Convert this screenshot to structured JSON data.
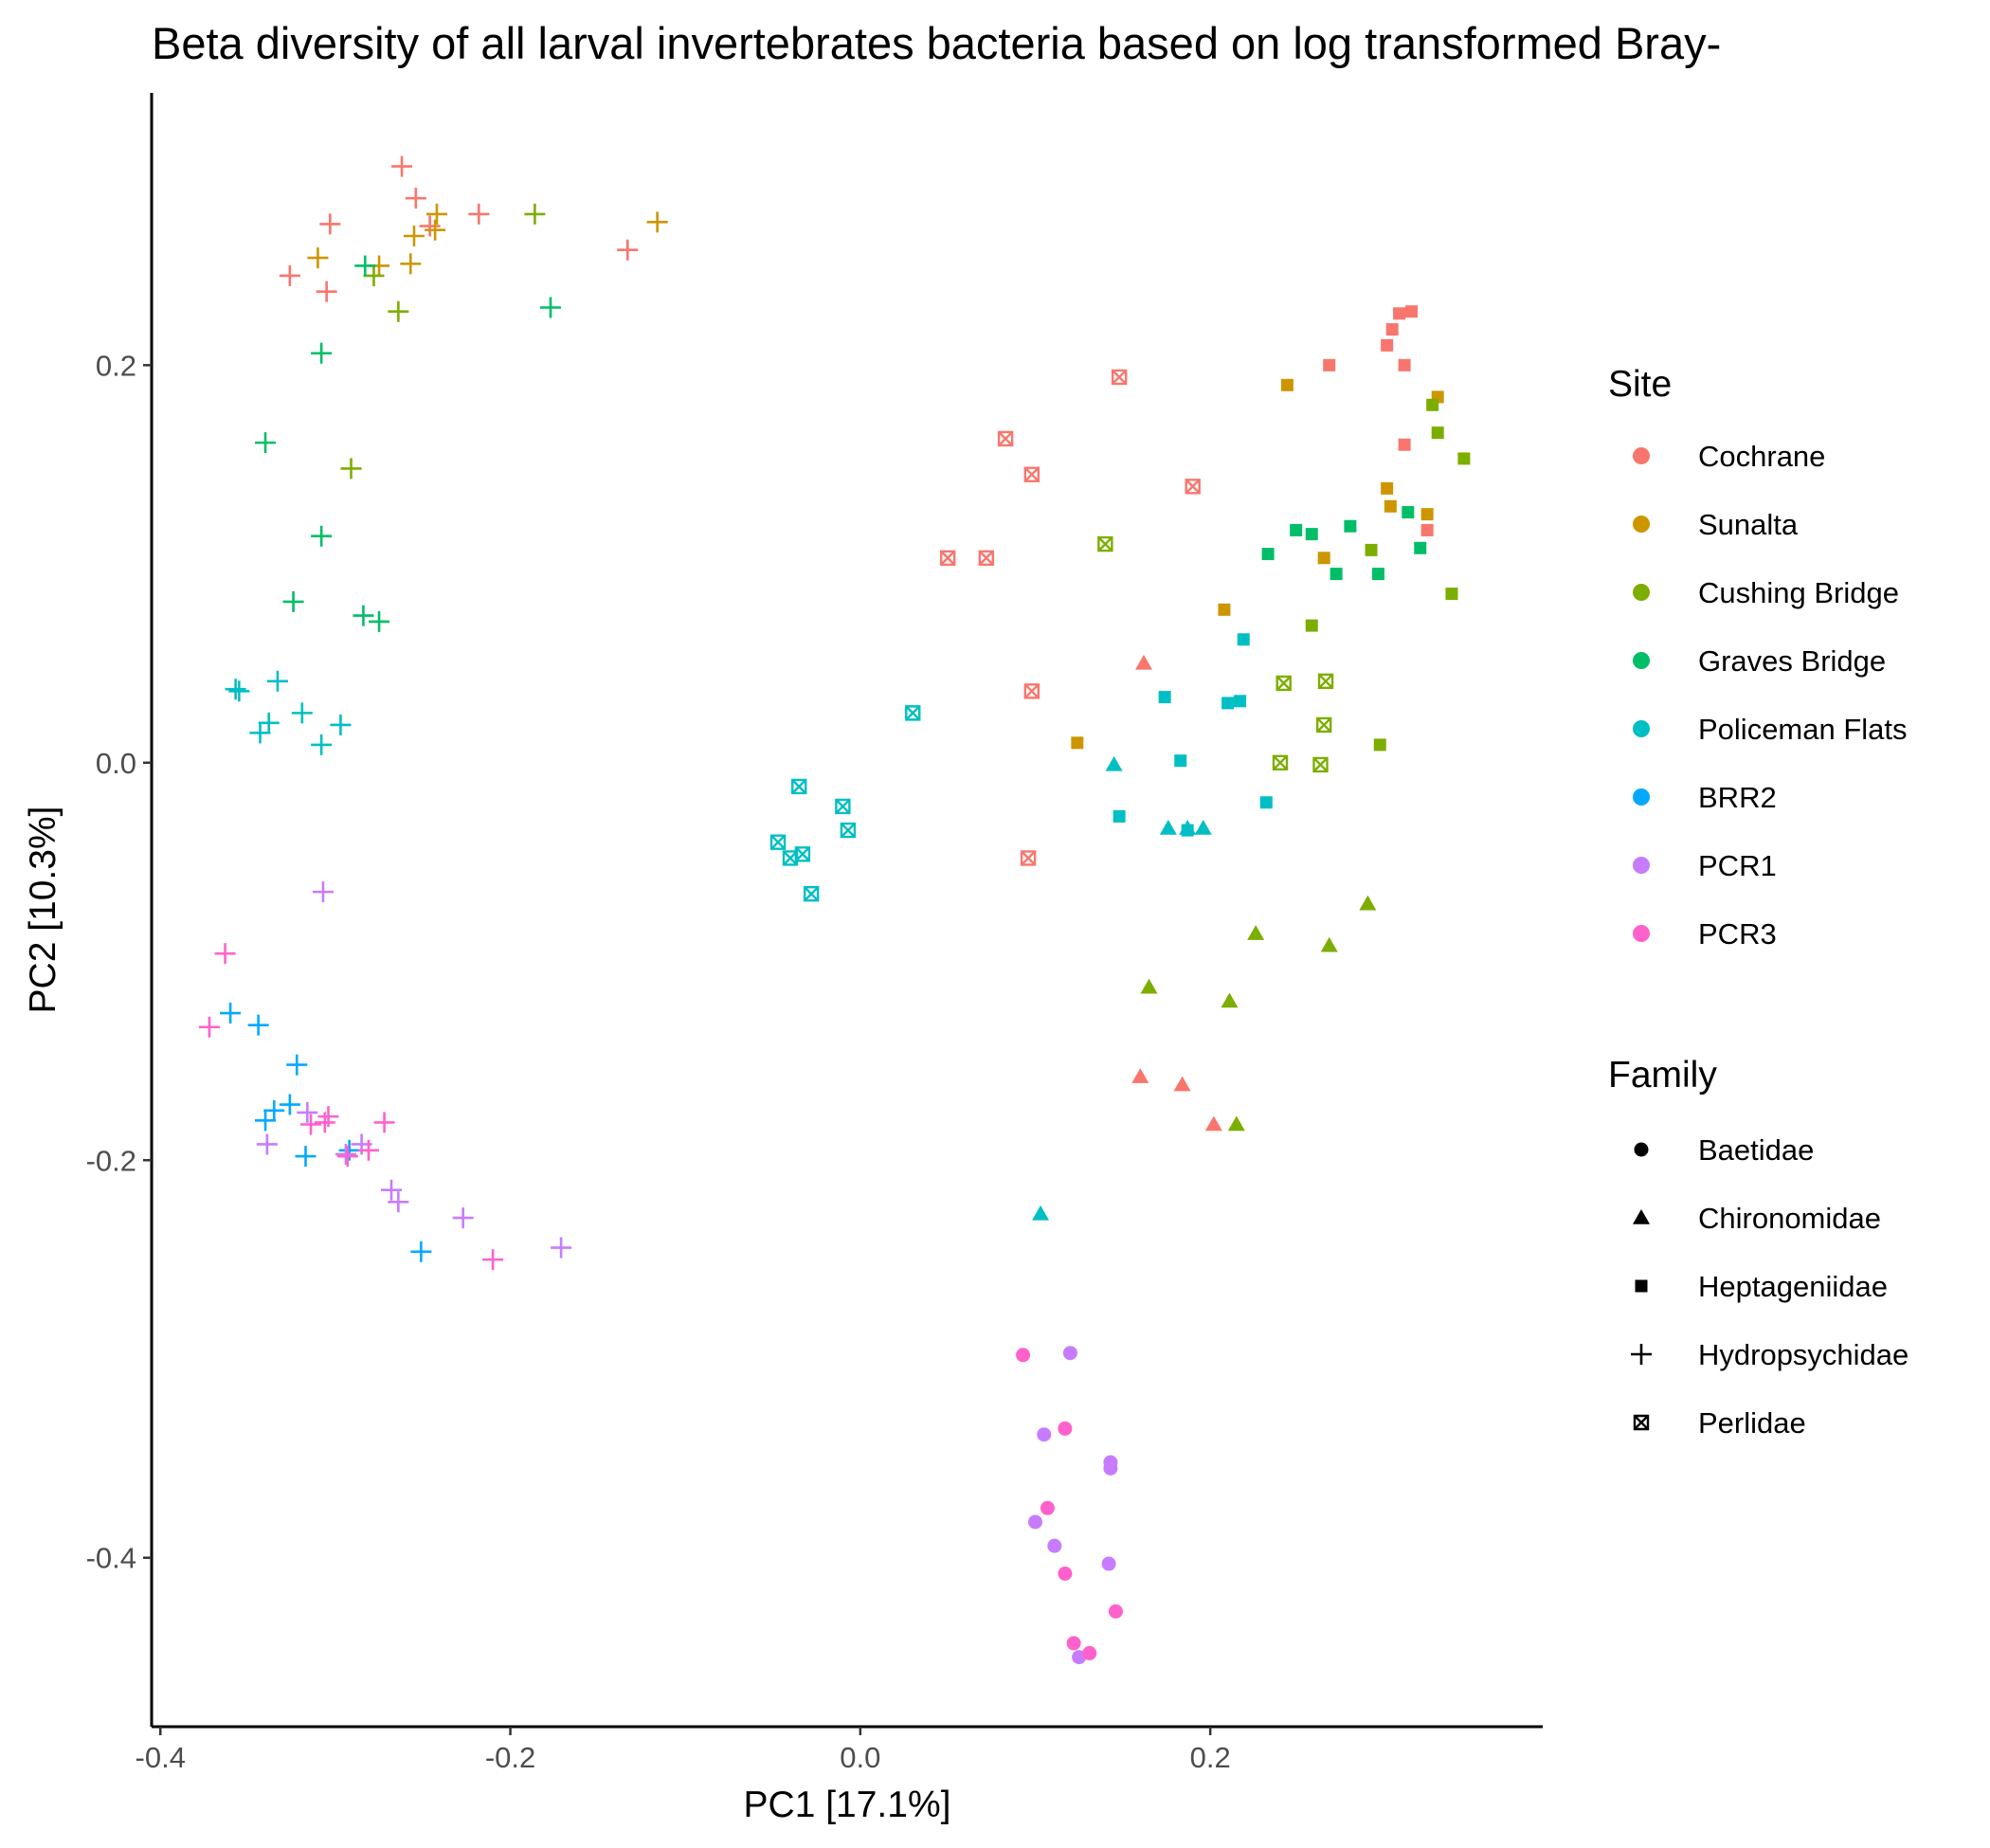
{
  "chart_data": {
    "type": "scatter",
    "title": "Beta diversity of all larval invertebrates bacteria based on log transformed Bray-",
    "xlabel": "PC1 [17.1%]",
    "ylabel": "PC2 [10.3%]",
    "xlim": [
      -0.405,
      0.39
    ],
    "ylim": [
      -0.485,
      0.337
    ],
    "xticks": [
      -0.4,
      -0.2,
      0.0,
      0.2
    ],
    "xtick_labels": [
      "-0.4",
      "-0.2",
      "0.0",
      "0.2"
    ],
    "yticks": [
      -0.4,
      -0.2,
      0.0,
      0.2
    ],
    "ytick_labels": [
      "-0.4",
      "-0.2",
      "0.0",
      "0.2"
    ],
    "grid": false,
    "legend_position": "right",
    "color_legend": {
      "title": "Site",
      "items": [
        {
          "name": "Cochrane",
          "color": "#F8766D"
        },
        {
          "name": "Sunalta",
          "color": "#CD9600"
        },
        {
          "name": "Cushing Bridge",
          "color": "#7CAE00"
        },
        {
          "name": "Graves Bridge",
          "color": "#00BE67"
        },
        {
          "name": "Policeman Flats",
          "color": "#00BFC4"
        },
        {
          "name": "BRR2",
          "color": "#00A9FF"
        },
        {
          "name": "PCR1",
          "color": "#C77CFF"
        },
        {
          "name": "PCR3",
          "color": "#FF61CC"
        }
      ]
    },
    "shape_legend": {
      "title": "Family",
      "items": [
        {
          "name": "Baetidae",
          "shape": "circle"
        },
        {
          "name": "Chironomidae",
          "shape": "triangle"
        },
        {
          "name": "Heptageniidae",
          "shape": "square"
        },
        {
          "name": "Hydropsychidae",
          "shape": "plus"
        },
        {
          "name": "Perlidae",
          "shape": "square-x"
        }
      ]
    },
    "series": [
      {
        "site": "Cochrane",
        "family": "Hydropsychidae",
        "points": [
          [
            -0.262,
            0.3
          ],
          [
            -0.254,
            0.284
          ],
          [
            -0.303,
            0.271
          ],
          [
            -0.218,
            0.276
          ],
          [
            -0.133,
            0.258
          ],
          [
            -0.326,
            0.245
          ],
          [
            -0.305,
            0.237
          ],
          [
            -0.246,
            0.27
          ]
        ]
      },
      {
        "site": "Sunalta",
        "family": "Hydropsychidae",
        "points": [
          [
            -0.31,
            0.254
          ],
          [
            -0.255,
            0.265
          ],
          [
            -0.243,
            0.268
          ],
          [
            -0.242,
            0.276
          ],
          [
            -0.257,
            0.251
          ],
          [
            -0.275,
            0.25
          ],
          [
            -0.116,
            0.272
          ]
        ]
      },
      {
        "site": "Cushing Bridge",
        "family": "Hydropsychidae",
        "points": [
          [
            -0.186,
            0.276
          ],
          [
            -0.278,
            0.245
          ],
          [
            -0.264,
            0.227
          ],
          [
            -0.291,
            0.148
          ]
        ]
      },
      {
        "site": "Graves Bridge",
        "family": "Hydropsychidae",
        "points": [
          [
            -0.283,
            0.25
          ],
          [
            -0.177,
            0.229
          ],
          [
            -0.308,
            0.206
          ],
          [
            -0.34,
            0.161
          ],
          [
            -0.308,
            0.114
          ],
          [
            -0.324,
            0.081
          ],
          [
            -0.284,
            0.074
          ],
          [
            -0.275,
            0.071
          ]
        ]
      },
      {
        "site": "Policeman Flats",
        "family": "Hydropsychidae",
        "points": [
          [
            -0.357,
            0.037
          ],
          [
            -0.355,
            0.036
          ],
          [
            -0.333,
            0.041
          ],
          [
            -0.319,
            0.025
          ],
          [
            -0.338,
            0.02
          ],
          [
            -0.343,
            0.015
          ],
          [
            -0.297,
            0.019
          ],
          [
            -0.308,
            0.009
          ]
        ]
      },
      {
        "site": "BRR2",
        "family": "Hydropsychidae",
        "points": [
          [
            -0.36,
            -0.126
          ],
          [
            -0.344,
            -0.132
          ],
          [
            -0.322,
            -0.152
          ],
          [
            -0.326,
            -0.172
          ],
          [
            -0.335,
            -0.175
          ],
          [
            -0.34,
            -0.18
          ],
          [
            -0.317,
            -0.198
          ],
          [
            -0.292,
            -0.195
          ],
          [
            -0.251,
            -0.246
          ]
        ]
      },
      {
        "site": "PCR1",
        "family": "Hydropsychidae",
        "points": [
          [
            -0.307,
            -0.065
          ],
          [
            -0.316,
            -0.176
          ],
          [
            -0.339,
            -0.192
          ],
          [
            -0.285,
            -0.192
          ],
          [
            -0.294,
            -0.197
          ],
          [
            -0.268,
            -0.215
          ],
          [
            -0.264,
            -0.221
          ],
          [
            -0.227,
            -0.229
          ],
          [
            -0.171,
            -0.244
          ]
        ]
      },
      {
        "site": "PCR3",
        "family": "Hydropsychidae",
        "points": [
          [
            -0.363,
            -0.096
          ],
          [
            -0.372,
            -0.133
          ],
          [
            -0.304,
            -0.178
          ],
          [
            -0.314,
            -0.182
          ],
          [
            -0.306,
            -0.181
          ],
          [
            -0.272,
            -0.181
          ],
          [
            -0.281,
            -0.195
          ],
          [
            -0.293,
            -0.198
          ],
          [
            -0.21,
            -0.25
          ]
        ]
      },
      {
        "site": "Cochrane",
        "family": "Heptageniidae",
        "points": [
          [
            0.315,
            0.227
          ],
          [
            0.308,
            0.226
          ],
          [
            0.304,
            0.218
          ],
          [
            0.301,
            0.21
          ],
          [
            0.268,
            0.2
          ],
          [
            0.311,
            0.2
          ],
          [
            0.311,
            0.16
          ],
          [
            0.324,
            0.117
          ]
        ]
      },
      {
        "site": "Sunalta",
        "family": "Heptageniidae",
        "points": [
          [
            0.244,
            0.19
          ],
          [
            0.33,
            0.184
          ],
          [
            0.301,
            0.138
          ],
          [
            0.303,
            0.129
          ],
          [
            0.324,
            0.125
          ],
          [
            0.265,
            0.103
          ],
          [
            0.208,
            0.077
          ],
          [
            0.124,
            0.01
          ]
        ]
      },
      {
        "site": "Cushing Bridge",
        "family": "Heptageniidae",
        "points": [
          [
            0.327,
            0.18
          ],
          [
            0.33,
            0.166
          ],
          [
            0.345,
            0.153
          ],
          [
            0.292,
            0.107
          ],
          [
            0.338,
            0.085
          ],
          [
            0.258,
            0.069
          ],
          [
            0.297,
            0.009
          ]
        ]
      },
      {
        "site": "Graves Bridge",
        "family": "Heptageniidae",
        "points": [
          [
            0.313,
            0.126
          ],
          [
            0.28,
            0.119
          ],
          [
            0.249,
            0.117
          ],
          [
            0.258,
            0.115
          ],
          [
            0.32,
            0.108
          ],
          [
            0.233,
            0.105
          ],
          [
            0.272,
            0.095
          ],
          [
            0.296,
            0.095
          ]
        ]
      },
      {
        "site": "Policeman Flats",
        "family": "Heptageniidae",
        "points": [
          [
            0.219,
            0.062
          ],
          [
            0.174,
            0.033
          ],
          [
            0.21,
            0.03
          ],
          [
            0.217,
            0.031
          ],
          [
            0.183,
            0.001
          ],
          [
            0.232,
            -0.02
          ],
          [
            0.148,
            -0.027
          ],
          [
            0.187,
            -0.034
          ]
        ]
      },
      {
        "site": "Cochrane",
        "family": "Perlidae",
        "points": [
          [
            0.148,
            0.194
          ],
          [
            0.083,
            0.163
          ],
          [
            0.098,
            0.145
          ],
          [
            0.19,
            0.139
          ],
          [
            0.05,
            0.103
          ],
          [
            0.072,
            0.103
          ],
          [
            0.098,
            0.036
          ],
          [
            0.096,
            -0.048
          ]
        ]
      },
      {
        "site": "Cushing Bridge",
        "family": "Perlidae",
        "points": [
          [
            0.14,
            0.11
          ],
          [
            0.242,
            0.04
          ],
          [
            0.266,
            0.041
          ],
          [
            0.265,
            0.019
          ],
          [
            0.24,
            0.0
          ],
          [
            0.263,
            -0.001
          ]
        ]
      },
      {
        "site": "Policeman Flats",
        "family": "Perlidae",
        "points": [
          [
            0.03,
            0.025
          ],
          [
            -0.035,
            -0.012
          ],
          [
            -0.01,
            -0.022
          ],
          [
            -0.007,
            -0.034
          ],
          [
            -0.047,
            -0.04
          ],
          [
            -0.033,
            -0.046
          ],
          [
            -0.04,
            -0.048
          ],
          [
            -0.028,
            -0.066
          ]
        ]
      },
      {
        "site": "Cochrane",
        "family": "Chironomidae",
        "points": [
          [
            0.162,
            0.05
          ],
          [
            0.16,
            -0.158
          ],
          [
            0.184,
            -0.162
          ],
          [
            0.202,
            -0.182
          ]
        ]
      },
      {
        "site": "Cushing Bridge",
        "family": "Chironomidae",
        "points": [
          [
            0.29,
            -0.071
          ],
          [
            0.226,
            -0.086
          ],
          [
            0.268,
            -0.092
          ],
          [
            0.165,
            -0.113
          ],
          [
            0.211,
            -0.12
          ],
          [
            0.215,
            -0.182
          ]
        ]
      },
      {
        "site": "Policeman Flats",
        "family": "Chironomidae",
        "points": [
          [
            0.145,
            -0.001
          ],
          [
            0.176,
            -0.033
          ],
          [
            0.187,
            -0.033
          ],
          [
            0.196,
            -0.033
          ],
          [
            0.103,
            -0.227
          ]
        ]
      },
      {
        "site": "PCR1",
        "family": "Baetidae",
        "points": [
          [
            0.12,
            -0.297
          ],
          [
            0.105,
            -0.338
          ],
          [
            0.143,
            -0.352
          ],
          [
            0.143,
            -0.355
          ],
          [
            0.1,
            -0.382
          ],
          [
            0.111,
            -0.394
          ],
          [
            0.142,
            -0.403
          ],
          [
            0.125,
            -0.45
          ]
        ]
      },
      {
        "site": "PCR3",
        "family": "Baetidae",
        "points": [
          [
            0.093,
            -0.298
          ],
          [
            0.117,
            -0.335
          ],
          [
            0.107,
            -0.375
          ],
          [
            0.117,
            -0.408
          ],
          [
            0.146,
            -0.427
          ],
          [
            0.122,
            -0.443
          ],
          [
            0.131,
            -0.448
          ]
        ]
      }
    ]
  }
}
